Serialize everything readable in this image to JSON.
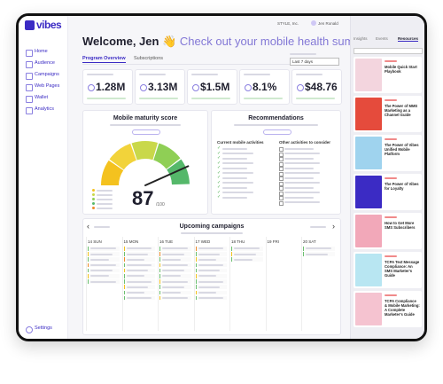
{
  "sidebar": {
    "logo": "vibes",
    "nav": [
      "Home",
      "Audience",
      "Campaigns",
      "Web Pages",
      "Wallet",
      "Analytics"
    ],
    "settings": "Settings"
  },
  "topbar": {
    "company": "STYLE, Inc.",
    "user": "Jen Ronald",
    "help": "?"
  },
  "header": {
    "greeting": "Welcome, Jen 👋",
    "subtitle": "Check out your mobile health summary"
  },
  "tabs": [
    "Program Overview",
    "Subscriptions"
  ],
  "date_filter": "Last 7 days",
  "kpis": [
    "1.28M",
    "3.13M",
    "$1.5M",
    "8.1%",
    "$48.76"
  ],
  "maturity": {
    "title": "Mobile maturity score",
    "score": "87",
    "max": "/100"
  },
  "recommendations": {
    "title": "Recommendations",
    "current_heading": "Current mobile activities",
    "other_heading": "Other activities to consider"
  },
  "campaigns": {
    "title": "Upcoming campaigns",
    "days": [
      "14 SUN",
      "15 MON",
      "16 TUE",
      "17 WED",
      "18 THU",
      "19 FRI",
      "20 SAT"
    ]
  },
  "resources": {
    "tabs": [
      "Insights",
      "Events",
      "Resources"
    ],
    "items": [
      "Mobile Quick Start Playbook",
      "The Power of MMS Marketing as a Channel Guide",
      "The Power of Vibes Unified Mobile Platform",
      "The Power of Vibes for Loyalty",
      "How to Get More SMS Subscribers",
      "TCPA Text Message Compliance: An SMS Marketer's Guide",
      "TCPA Compliance & Mobile Marketing: A Complete Marketer's Guide"
    ]
  }
}
